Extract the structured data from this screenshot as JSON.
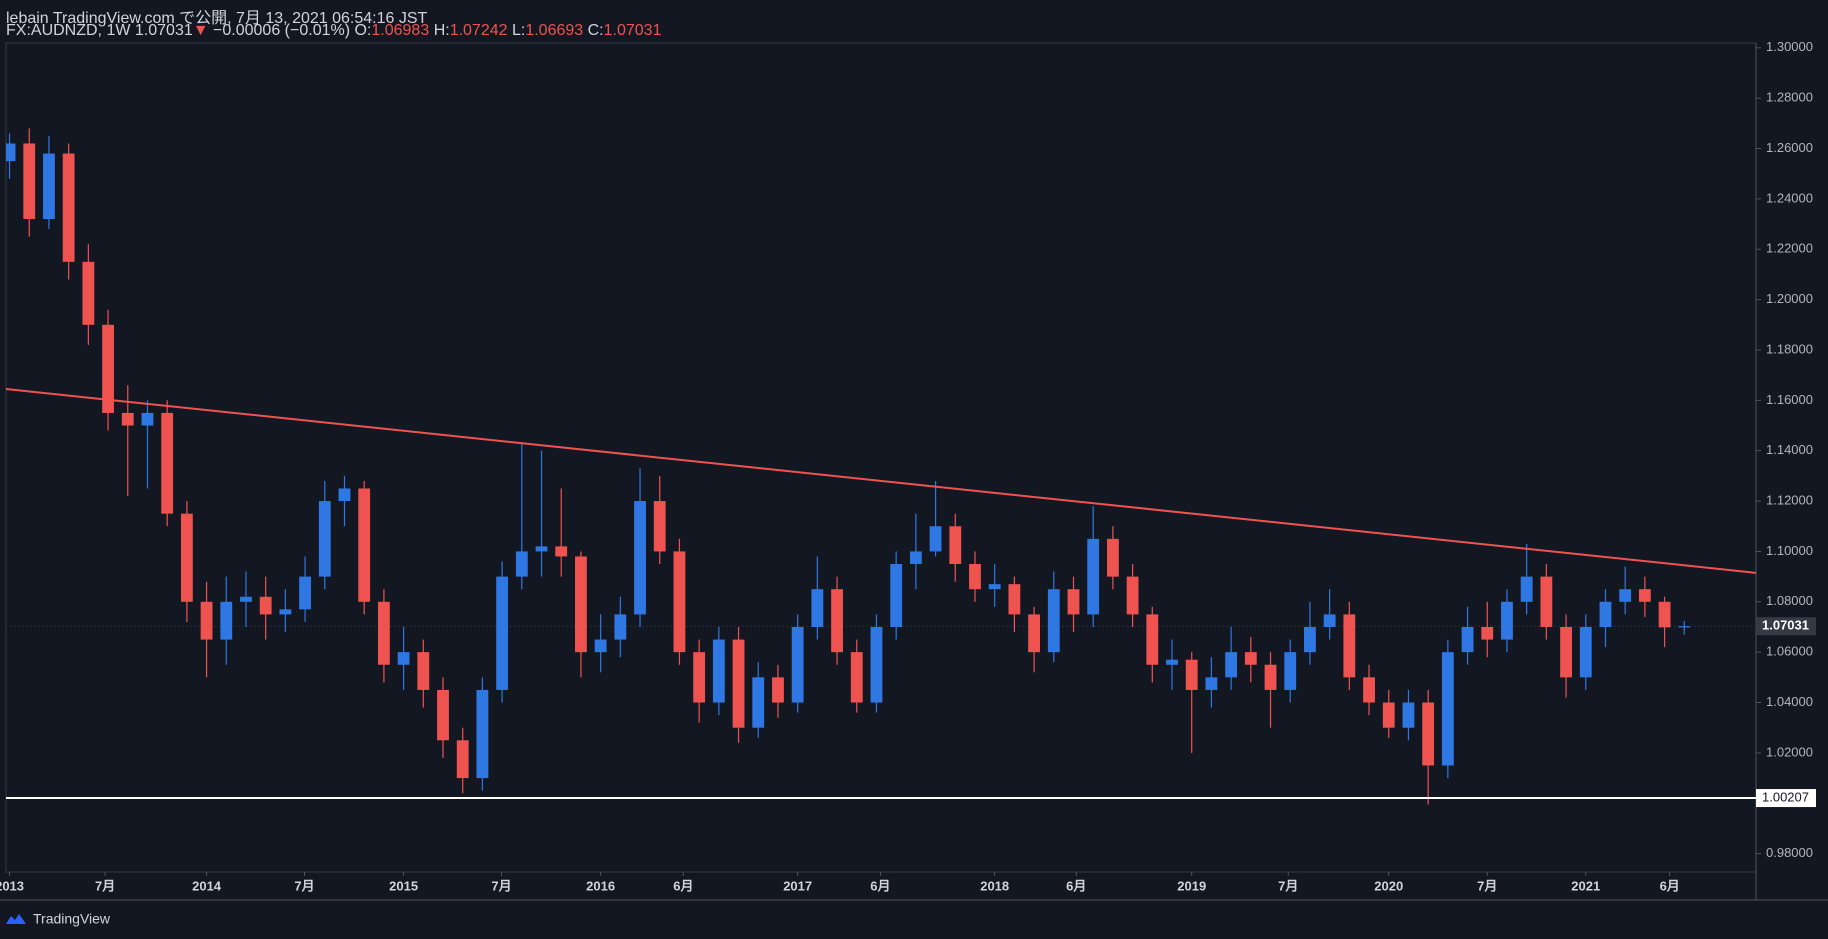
{
  "header": {
    "line1": "lebain TradingView.com で公開, 7月 13, 2021 06:54:16 JST",
    "symbol": "FX:AUDNZD, 1W",
    "arrow": "▼",
    "change": "−0.00006 (−0.01%)",
    "o": "O:",
    "h": "H:",
    "l": "L:",
    "c": "C:"
  },
  "footer": "TradingView",
  "chart_data": {
    "type": "candlestick",
    "x": [
      2013.0,
      2013.1,
      2013.2,
      2013.3,
      2013.4,
      2013.5,
      2013.6,
      2013.7,
      2013.8,
      2013.9,
      2014.0,
      2014.1,
      2014.2,
      2014.3,
      2014.4,
      2014.5,
      2014.6,
      2014.7,
      2014.8,
      2014.9,
      2015.0,
      2015.1,
      2015.2,
      2015.3,
      2015.4,
      2015.5,
      2015.6,
      2015.7,
      2015.8,
      2015.9,
      2016.0,
      2016.1,
      2016.2,
      2016.3,
      2016.4,
      2016.5,
      2016.6,
      2016.7,
      2016.8,
      2016.9,
      2017.0,
      2017.1,
      2017.2,
      2017.3,
      2017.4,
      2017.5,
      2017.6,
      2017.7,
      2017.8,
      2017.9,
      2018.0,
      2018.1,
      2018.2,
      2018.3,
      2018.4,
      2018.5,
      2018.6,
      2018.7,
      2018.8,
      2018.9,
      2019.0,
      2019.1,
      2019.2,
      2019.3,
      2019.4,
      2019.5,
      2019.6,
      2019.7,
      2019.8,
      2019.9,
      2020.0,
      2020.1,
      2020.2,
      2020.3,
      2020.4,
      2020.5,
      2020.6,
      2020.7,
      2020.8,
      2020.9,
      2021.0,
      2021.1,
      2021.2,
      2021.3,
      2021.4,
      2021.5
    ],
    "ohlc": [
      [
        1.255,
        1.266,
        1.248,
        1.262
      ],
      [
        1.262,
        1.268,
        1.225,
        1.232
      ],
      [
        1.232,
        1.265,
        1.228,
        1.258
      ],
      [
        1.258,
        1.262,
        1.208,
        1.215
      ],
      [
        1.215,
        1.222,
        1.182,
        1.19
      ],
      [
        1.19,
        1.196,
        1.148,
        1.155
      ],
      [
        1.155,
        1.166,
        1.122,
        1.15
      ],
      [
        1.15,
        1.16,
        1.125,
        1.155
      ],
      [
        1.155,
        1.16,
        1.11,
        1.115
      ],
      [
        1.115,
        1.12,
        1.072,
        1.08
      ],
      [
        1.08,
        1.088,
        1.05,
        1.065
      ],
      [
        1.065,
        1.09,
        1.055,
        1.08
      ],
      [
        1.08,
        1.092,
        1.07,
        1.082
      ],
      [
        1.082,
        1.09,
        1.065,
        1.075
      ],
      [
        1.075,
        1.085,
        1.068,
        1.077
      ],
      [
        1.077,
        1.098,
        1.072,
        1.09
      ],
      [
        1.09,
        1.128,
        1.085,
        1.12
      ],
      [
        1.12,
        1.13,
        1.11,
        1.125
      ],
      [
        1.125,
        1.128,
        1.075,
        1.08
      ],
      [
        1.08,
        1.085,
        1.048,
        1.055
      ],
      [
        1.055,
        1.07,
        1.045,
        1.06
      ],
      [
        1.06,
        1.065,
        1.038,
        1.045
      ],
      [
        1.045,
        1.05,
        1.018,
        1.025
      ],
      [
        1.025,
        1.03,
        1.004,
        1.01
      ],
      [
        1.01,
        1.05,
        1.005,
        1.045
      ],
      [
        1.045,
        1.096,
        1.04,
        1.09
      ],
      [
        1.09,
        1.143,
        1.085,
        1.1
      ],
      [
        1.1,
        1.14,
        1.09,
        1.102
      ],
      [
        1.102,
        1.125,
        1.09,
        1.098
      ],
      [
        1.098,
        1.1,
        1.05,
        1.06
      ],
      [
        1.06,
        1.075,
        1.052,
        1.065
      ],
      [
        1.065,
        1.082,
        1.058,
        1.075
      ],
      [
        1.075,
        1.133,
        1.07,
        1.12
      ],
      [
        1.12,
        1.13,
        1.095,
        1.1
      ],
      [
        1.1,
        1.105,
        1.055,
        1.06
      ],
      [
        1.06,
        1.065,
        1.032,
        1.04
      ],
      [
        1.04,
        1.07,
        1.035,
        1.065
      ],
      [
        1.065,
        1.07,
        1.024,
        1.03
      ],
      [
        1.03,
        1.056,
        1.026,
        1.05
      ],
      [
        1.05,
        1.055,
        1.034,
        1.04
      ],
      [
        1.04,
        1.075,
        1.036,
        1.07
      ],
      [
        1.07,
        1.098,
        1.065,
        1.085
      ],
      [
        1.085,
        1.09,
        1.055,
        1.06
      ],
      [
        1.06,
        1.065,
        1.036,
        1.04
      ],
      [
        1.04,
        1.075,
        1.036,
        1.07
      ],
      [
        1.07,
        1.1,
        1.065,
        1.095
      ],
      [
        1.095,
        1.115,
        1.085,
        1.1
      ],
      [
        1.1,
        1.128,
        1.098,
        1.11
      ],
      [
        1.11,
        1.115,
        1.088,
        1.095
      ],
      [
        1.095,
        1.1,
        1.08,
        1.085
      ],
      [
        1.085,
        1.095,
        1.078,
        1.087
      ],
      [
        1.087,
        1.09,
        1.068,
        1.075
      ],
      [
        1.075,
        1.078,
        1.052,
        1.06
      ],
      [
        1.06,
        1.092,
        1.056,
        1.085
      ],
      [
        1.085,
        1.09,
        1.068,
        1.075
      ],
      [
        1.075,
        1.118,
        1.07,
        1.105
      ],
      [
        1.105,
        1.11,
        1.085,
        1.09
      ],
      [
        1.09,
        1.095,
        1.07,
        1.075
      ],
      [
        1.075,
        1.078,
        1.048,
        1.055
      ],
      [
        1.055,
        1.065,
        1.045,
        1.057
      ],
      [
        1.057,
        1.06,
        1.02,
        1.045
      ],
      [
        1.045,
        1.058,
        1.038,
        1.05
      ],
      [
        1.05,
        1.07,
        1.045,
        1.06
      ],
      [
        1.06,
        1.066,
        1.048,
        1.055
      ],
      [
        1.055,
        1.06,
        1.03,
        1.045
      ],
      [
        1.045,
        1.065,
        1.04,
        1.06
      ],
      [
        1.06,
        1.08,
        1.055,
        1.07
      ],
      [
        1.07,
        1.085,
        1.065,
        1.075
      ],
      [
        1.075,
        1.08,
        1.045,
        1.05
      ],
      [
        1.05,
        1.055,
        1.035,
        1.04
      ],
      [
        1.04,
        1.045,
        1.026,
        1.03
      ],
      [
        1.03,
        1.045,
        1.025,
        1.04
      ],
      [
        1.04,
        1.045,
        0.9995,
        1.015
      ],
      [
        1.015,
        1.065,
        1.01,
        1.06
      ],
      [
        1.06,
        1.078,
        1.055,
        1.07
      ],
      [
        1.07,
        1.08,
        1.058,
        1.065
      ],
      [
        1.065,
        1.085,
        1.06,
        1.08
      ],
      [
        1.08,
        1.103,
        1.075,
        1.09
      ],
      [
        1.09,
        1.095,
        1.065,
        1.07
      ],
      [
        1.07,
        1.075,
        1.042,
        1.05
      ],
      [
        1.05,
        1.075,
        1.045,
        1.07
      ],
      [
        1.07,
        1.085,
        1.062,
        1.08
      ],
      [
        1.08,
        1.094,
        1.075,
        1.085
      ],
      [
        1.085,
        1.09,
        1.074,
        1.08
      ],
      [
        1.08,
        1.082,
        1.062,
        1.06983
      ],
      [
        1.06983,
        1.07242,
        1.06693,
        1.07031
      ]
    ],
    "up_color": "#2f78e4",
    "down_color": "#ef5350",
    "xlim": [
      2012.982,
      2021.864
    ],
    "xticks": [
      {
        "value": 2013.0,
        "label": "2013"
      },
      {
        "value": 2013.485,
        "label": "7月"
      },
      {
        "value": 2014.0,
        "label": "2014"
      },
      {
        "value": 2014.497,
        "label": "7月"
      },
      {
        "value": 2015.0,
        "label": "2015"
      },
      {
        "value": 2015.497,
        "label": "7月"
      },
      {
        "value": 2016.0,
        "label": "2016"
      },
      {
        "value": 2016.42,
        "label": "6月"
      },
      {
        "value": 2017.0,
        "label": "2017"
      },
      {
        "value": 2017.42,
        "label": "6月"
      },
      {
        "value": 2018.0,
        "label": "2018"
      },
      {
        "value": 2018.414,
        "label": "6月"
      },
      {
        "value": 2019.0,
        "label": "2019"
      },
      {
        "value": 2019.49,
        "label": "7月"
      },
      {
        "value": 2020.0,
        "label": "2020"
      },
      {
        "value": 2020.5,
        "label": "7月"
      },
      {
        "value": 2021.0,
        "label": "2021"
      },
      {
        "value": 2021.426,
        "label": "6月"
      }
    ],
    "ylim": [
      0.9727,
      1.3019
    ],
    "yticks": [
      {
        "value": 0.98,
        "label": "0.98000"
      },
      {
        "value": 1.0,
        "label": "1.00000"
      },
      {
        "value": 1.02,
        "label": "1.02000"
      },
      {
        "value": 1.04,
        "label": "1.04000"
      },
      {
        "value": 1.06,
        "label": "1.06000"
      },
      {
        "value": 1.08,
        "label": "1.08000"
      },
      {
        "value": 1.1,
        "label": "1.10000"
      },
      {
        "value": 1.12,
        "label": "1.12000"
      },
      {
        "value": 1.14,
        "label": "1.14000"
      },
      {
        "value": 1.16,
        "label": "1.16000"
      },
      {
        "value": 1.18,
        "label": "1.18000"
      },
      {
        "value": 1.2,
        "label": "1.20000"
      },
      {
        "value": 1.22,
        "label": "1.22000"
      },
      {
        "value": 1.24,
        "label": "1.24000"
      },
      {
        "value": 1.26,
        "label": "1.26000"
      },
      {
        "value": 1.28,
        "label": "1.28000"
      },
      {
        "value": 1.3,
        "label": "1.30000"
      }
    ],
    "trendline": {
      "x": [
        2012.982,
        2021.864
      ],
      "y": [
        1.1645,
        1.0915
      ],
      "color": "#ef5350"
    },
    "hline": {
      "value": 1.00207,
      "color": "#ffffff"
    }
  }
}
